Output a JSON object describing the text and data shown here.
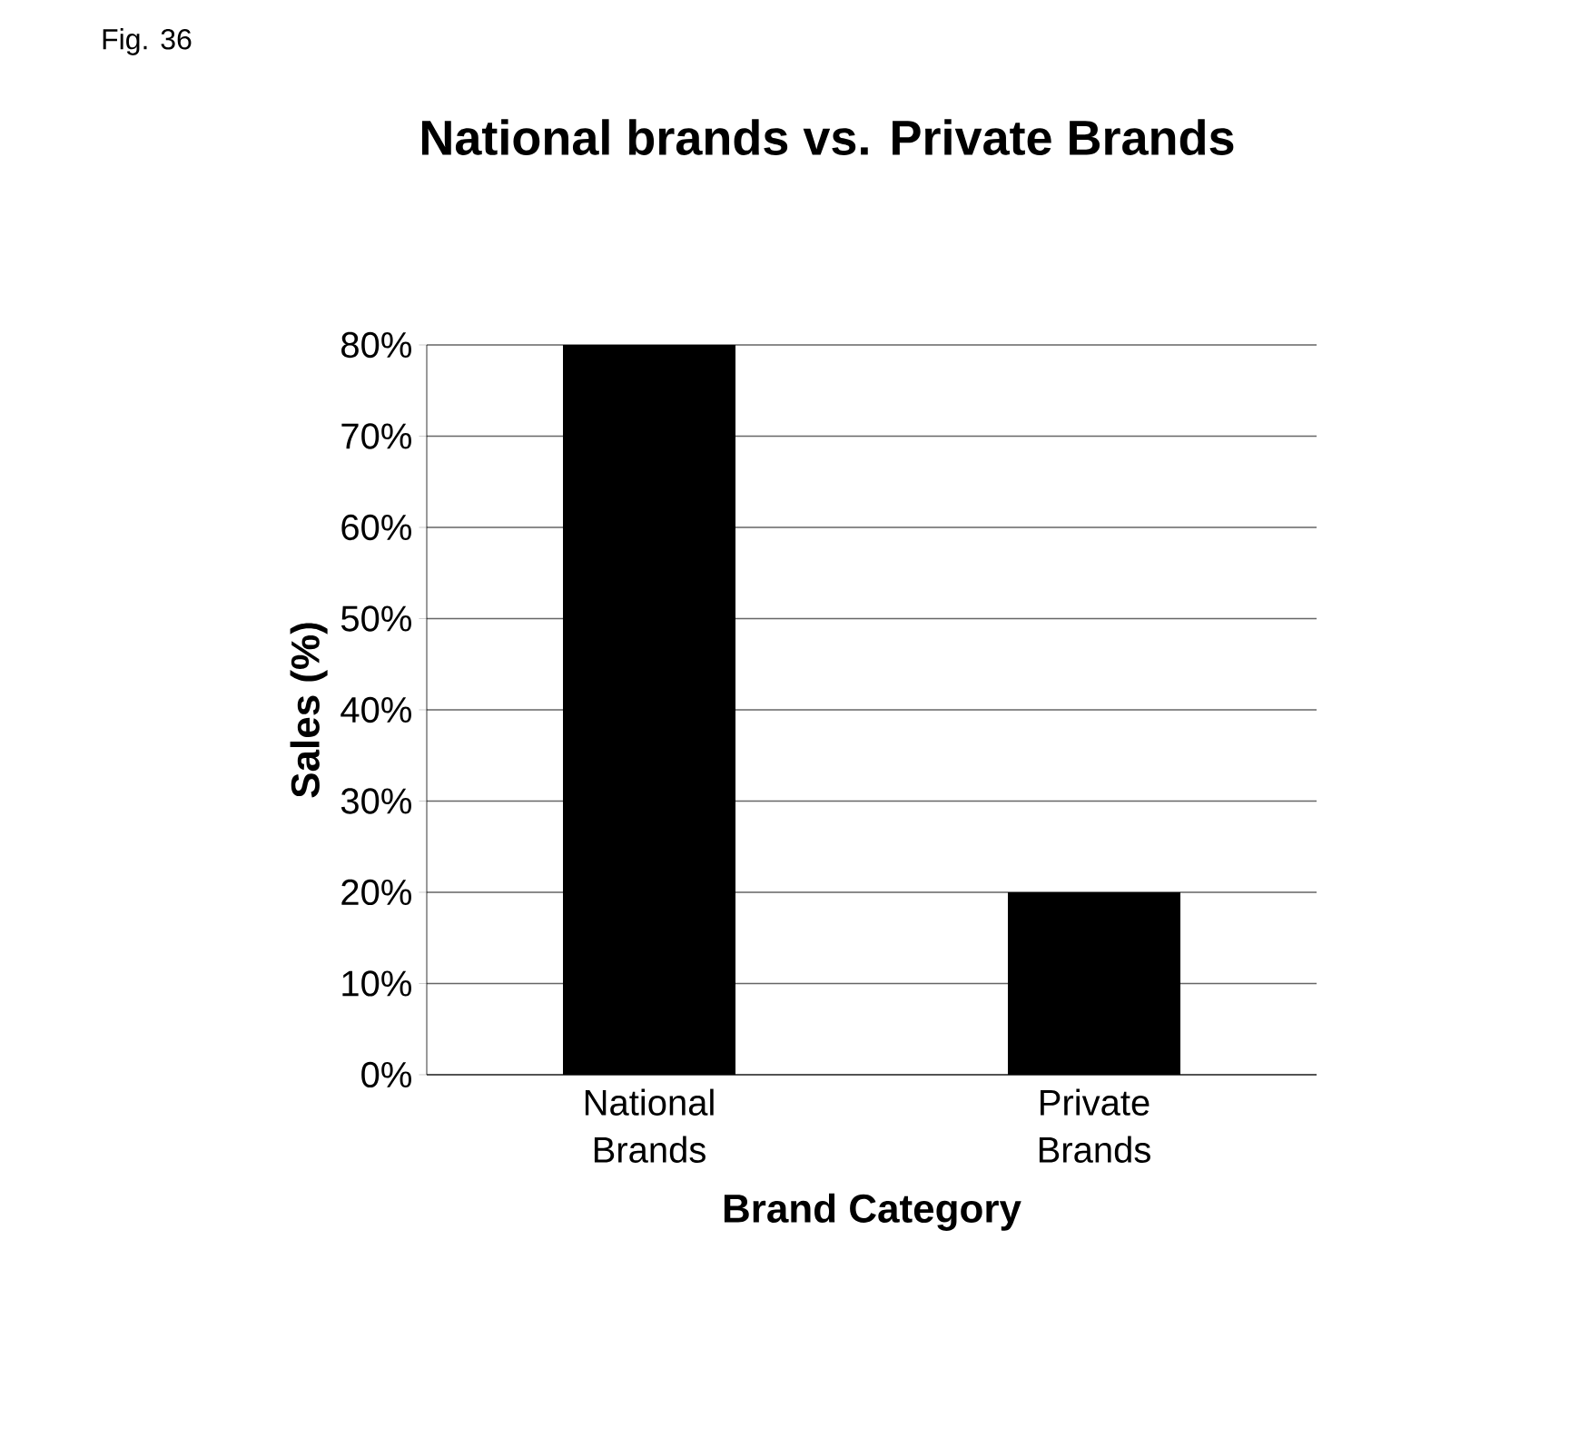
{
  "chart_data": {
    "type": "bar",
    "title": "National brands vs. Private Brands",
    "xlabel": "Brand Category",
    "ylabel": "Sales (%)",
    "categories": [
      "National Brands",
      "Private Brands"
    ],
    "values": [
      80,
      20
    ],
    "color": "#000000",
    "ylim": [
      0,
      80
    ],
    "yticks": [
      {
        "value": 0,
        "label": "0%"
      },
      {
        "value": 10,
        "label": "10%"
      },
      {
        "value": 20,
        "label": "20%"
      },
      {
        "value": 30,
        "label": "30%"
      },
      {
        "value": 40,
        "label": "40%"
      },
      {
        "value": 50,
        "label": "50%"
      },
      {
        "value": 60,
        "label": "60%"
      },
      {
        "value": 70,
        "label": "70%"
      },
      {
        "value": 80,
        "label": "80%"
      }
    ],
    "grid": "y",
    "annotations": [
      "Fig. 36"
    ]
  }
}
